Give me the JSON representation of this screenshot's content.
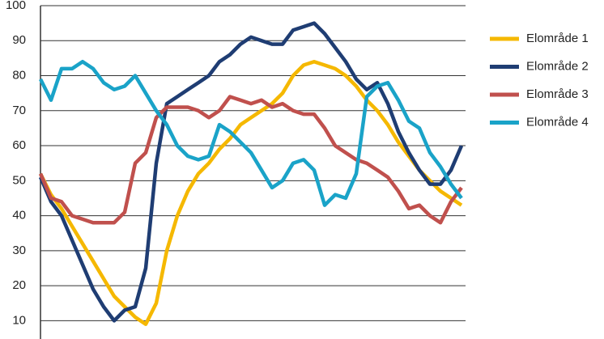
{
  "chart_data": {
    "type": "line",
    "ylim": [
      5,
      100
    ],
    "yticks": [
      10,
      20,
      30,
      40,
      50,
      60,
      70,
      80,
      90,
      100
    ],
    "grid": true,
    "legend": "right",
    "series": [
      {
        "name": "Elområde 1",
        "color": "#f5b800",
        "values": [
          52,
          46,
          42,
          37,
          32,
          27,
          22,
          17,
          14,
          11,
          9,
          15,
          30,
          40,
          47,
          52,
          55,
          59,
          62,
          66,
          68,
          70,
          72,
          75,
          80,
          83,
          84,
          83,
          82,
          80,
          77,
          73,
          70,
          66,
          61,
          57,
          53,
          50,
          47,
          45,
          43
        ]
      },
      {
        "name": "Elområde 2",
        "color": "#1f3d73",
        "values": [
          51,
          44,
          40,
          33,
          26,
          19,
          14,
          10,
          13,
          14,
          25,
          55,
          72,
          74,
          76,
          78,
          80,
          84,
          86,
          89,
          91,
          90,
          89,
          89,
          93,
          94,
          95,
          92,
          88,
          84,
          79,
          76,
          78,
          72,
          64,
          58,
          53,
          49,
          49,
          53,
          60
        ]
      },
      {
        "name": "Elområde 3",
        "color": "#c0504d",
        "values": [
          52,
          45,
          44,
          40,
          39,
          38,
          38,
          38,
          41,
          55,
          58,
          68,
          71,
          71,
          71,
          70,
          68,
          70,
          74,
          73,
          72,
          73,
          71,
          72,
          70,
          69,
          69,
          65,
          60,
          58,
          56,
          55,
          53,
          51,
          47,
          42,
          43,
          40,
          38,
          44,
          48
        ]
      },
      {
        "name": "Elområde 4",
        "color": "#1aa3c8",
        "values": [
          79,
          73,
          82,
          82,
          84,
          82,
          78,
          76,
          77,
          80,
          75,
          70,
          66,
          60,
          57,
          56,
          57,
          66,
          64,
          61,
          58,
          53,
          48,
          50,
          55,
          56,
          53,
          43,
          46,
          45,
          52,
          74,
          77,
          78,
          73,
          67,
          65,
          58,
          54,
          49,
          45
        ]
      }
    ]
  }
}
